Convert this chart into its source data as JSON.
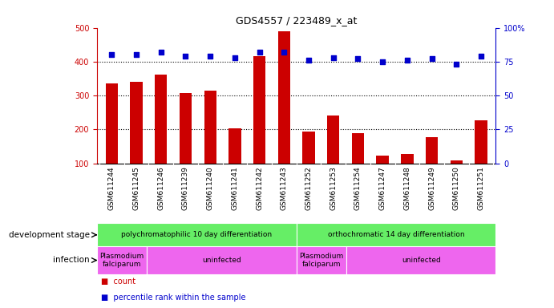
{
  "title": "GDS4557 / 223489_x_at",
  "samples": [
    "GSM611244",
    "GSM611245",
    "GSM611246",
    "GSM611239",
    "GSM611240",
    "GSM611241",
    "GSM611242",
    "GSM611243",
    "GSM611252",
    "GSM611253",
    "GSM611254",
    "GSM611247",
    "GSM611248",
    "GSM611249",
    "GSM611250",
    "GSM611251"
  ],
  "counts": [
    335,
    340,
    362,
    308,
    314,
    202,
    416,
    490,
    194,
    242,
    188,
    122,
    128,
    176,
    108,
    226
  ],
  "percentiles": [
    80,
    80,
    82,
    79,
    79,
    78,
    82,
    82,
    76,
    78,
    77,
    75,
    76,
    77,
    73,
    79
  ],
  "bar_color": "#cc0000",
  "dot_color": "#0000cc",
  "ylim_left": [
    100,
    500
  ],
  "ylim_right": [
    0,
    100
  ],
  "yticks_left": [
    100,
    200,
    300,
    400,
    500
  ],
  "yticks_right": [
    0,
    25,
    50,
    75,
    100
  ],
  "grid_values": [
    200,
    300,
    400
  ],
  "bar_width": 0.5,
  "dev_stage_color": "#66ee66",
  "infection_color": "#ee66ee",
  "label_bg_color": "#d8d8d8",
  "inf_starts": [
    0,
    2,
    8,
    10
  ],
  "inf_ends": [
    2,
    8,
    10,
    16
  ],
  "inf_labels": [
    "Plasmodium\nfalciparum",
    "uninfected",
    "Plasmodium\nfalciparum",
    "uninfected"
  ],
  "dev_labels": [
    "polychromatophilic 10 day differentiation",
    "orthochromatic 14 day differentiation"
  ],
  "legend_count": "count",
  "legend_pct": "percentile rank within the sample"
}
